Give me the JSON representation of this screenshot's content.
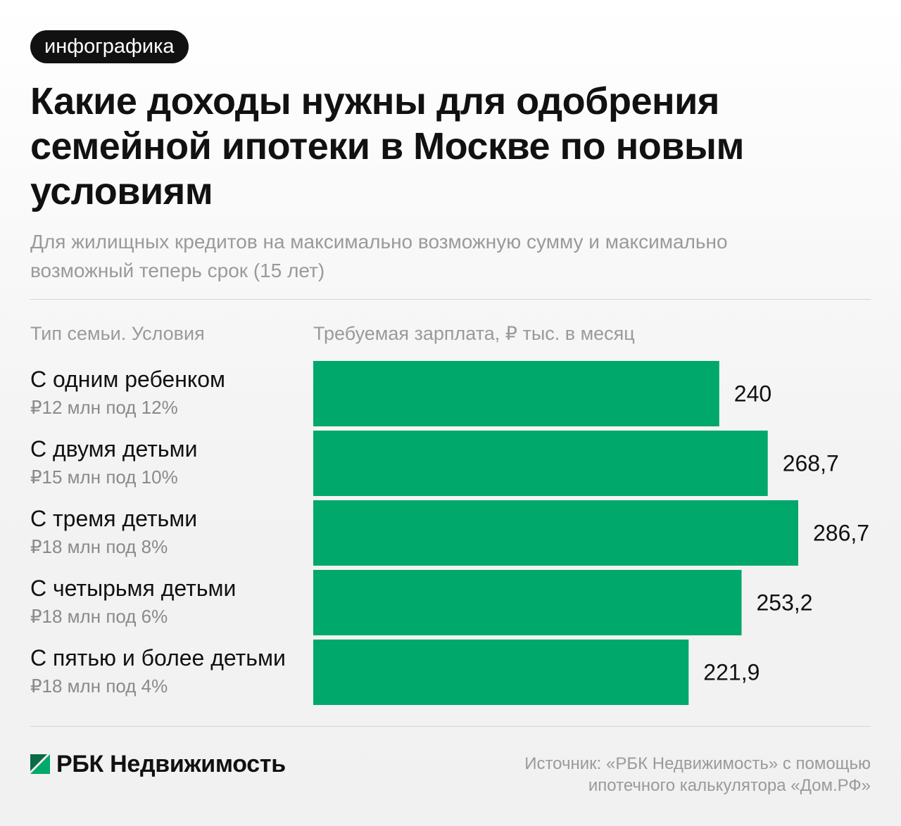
{
  "tag": "инфографика",
  "header": {
    "title_lines": [
      "Какие доходы нужны для одобрения",
      "семейной ипотеки в Москве по новым",
      "условиям"
    ],
    "subtitle_lines": [
      "Для жилищных кредитов на максимально возможную сумму и максимально",
      "возможный теперь срок (15 лет)"
    ]
  },
  "columns": {
    "left": "Тип семьи. Условия",
    "right": "Требуемая зарплата, ₽ тыс. в месяц"
  },
  "chart_data": {
    "type": "bar",
    "orientation": "horizontal",
    "categories": [
      "С одним ребенком",
      "С двумя детьми",
      "С тремя детьми",
      "С четырьмя детьми",
      "С пятью и более детьми"
    ],
    "conditions": [
      "₽12 млн под 12%",
      "₽15 млн под 10%",
      "₽18 млн под 8%",
      "₽18 млн под 6%",
      "₽18 млн под 4%"
    ],
    "values": [
      240,
      268.7,
      286.7,
      253.2,
      221.9
    ],
    "value_labels": [
      "240",
      "268,7",
      "286,7",
      "253,2",
      "221,9"
    ],
    "title": "Какие доходы нужны для одобрения семейной ипотеки в Москве по новым условиям",
    "xlabel": "Требуемая зарплата, ₽ тыс. в месяц",
    "ylabel": "Тип семьи. Условия",
    "xlim": [
      0,
      286.7
    ],
    "grid": false,
    "legend": "none",
    "bar_color": "#00a86b"
  },
  "footer": {
    "brand": "РБК Недвижимость",
    "brand_icon": "rbc-logo-icon",
    "source_lines": [
      "Источник: «РБК Недвижимость» с помощью",
      "ипотечного калькулятора «Дом.РФ»"
    ]
  },
  "colors": {
    "accent": "#00a86b",
    "text": "#111111",
    "muted": "#9a9a9a"
  }
}
